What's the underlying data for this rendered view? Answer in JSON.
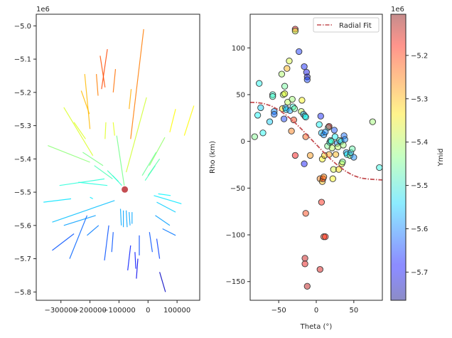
{
  "chart_data": [
    {
      "type": "line",
      "panel": "left",
      "xlim": [
        -385000,
        178000
      ],
      "ylim": [
        -5825000,
        -4965000
      ],
      "xticks": [
        -300000,
        -200000,
        -100000,
        0,
        100000
      ],
      "xtick_labels": [
        "−300000",
        "−200000",
        "−100000",
        "0",
        "100000"
      ],
      "yticks": [
        -5800000,
        -5700000,
        -5600000,
        -5500000,
        -5400000,
        -5300000,
        -5200000,
        -5100000,
        -5000000
      ],
      "ytick_labels": [
        "−5.8",
        "−5.7",
        "−5.6",
        "−5.5",
        "−5.4",
        "−5.3",
        "−5.2",
        "−5.1",
        "−5.0"
      ],
      "y_offset_text": "1e6",
      "center_point": {
        "x": -80000,
        "y": -5492000,
        "color": "#c44e52"
      },
      "segments": [
        {
          "x1": -15000,
          "y1": -5010000,
          "x2": -60000,
          "y2": -5340000
        },
        {
          "x1": -165000,
          "y1": -5090000,
          "x2": -148000,
          "y2": -5185000
        },
        {
          "x1": -140000,
          "y1": -5070000,
          "x2": -160000,
          "y2": -5190000
        },
        {
          "x1": -178000,
          "y1": -5145000,
          "x2": -172000,
          "y2": -5210000
        },
        {
          "x1": -112000,
          "y1": -5130000,
          "x2": -120000,
          "y2": -5200000
        },
        {
          "x1": -218000,
          "y1": -5145000,
          "x2": -200000,
          "y2": -5310000
        },
        {
          "x1": -230000,
          "y1": -5195000,
          "x2": -202000,
          "y2": -5265000
        },
        {
          "x1": -58000,
          "y1": -5190000,
          "x2": -65000,
          "y2": -5250000
        },
        {
          "x1": 158000,
          "y1": -5240000,
          "x2": 125000,
          "y2": -5330000
        },
        {
          "x1": 95000,
          "y1": -5250000,
          "x2": 75000,
          "y2": -5320000
        },
        {
          "x1": -5000,
          "y1": -5215000,
          "x2": -75000,
          "y2": -5440000
        },
        {
          "x1": -290000,
          "y1": -5245000,
          "x2": -190000,
          "y2": -5390000
        },
        {
          "x1": -255000,
          "y1": -5290000,
          "x2": -215000,
          "y2": -5340000
        },
        {
          "x1": -145000,
          "y1": -5290000,
          "x2": -148000,
          "y2": -5340000
        },
        {
          "x1": -120000,
          "y1": -5290000,
          "x2": -115000,
          "y2": -5330000
        },
        {
          "x1": -108000,
          "y1": -5330000,
          "x2": -82000,
          "y2": -5480000
        },
        {
          "x1": 58000,
          "y1": -5335000,
          "x2": 5000,
          "y2": -5420000
        },
        {
          "x1": 28000,
          "y1": -5380000,
          "x2": -20000,
          "y2": -5450000
        },
        {
          "x1": -225000,
          "y1": -5380000,
          "x2": -155000,
          "y2": -5420000
        },
        {
          "x1": -345000,
          "y1": -5360000,
          "x2": -200000,
          "y2": -5410000
        },
        {
          "x1": 40000,
          "y1": -5400000,
          "x2": 0,
          "y2": -5450000
        },
        {
          "x1": 25000,
          "y1": -5420000,
          "x2": -10000,
          "y2": -5465000
        },
        {
          "x1": -185000,
          "y1": -5420000,
          "x2": -122000,
          "y2": -5460000
        },
        {
          "x1": -140000,
          "y1": -5435000,
          "x2": -102000,
          "y2": -5468000
        },
        {
          "x1": -122000,
          "y1": -5450000,
          "x2": -90000,
          "y2": -5480000
        },
        {
          "x1": -240000,
          "y1": -5470000,
          "x2": -140000,
          "y2": -5480000
        },
        {
          "x1": -305000,
          "y1": -5480000,
          "x2": -150000,
          "y2": -5460000
        },
        {
          "x1": -200000,
          "y1": -5515000,
          "x2": -190000,
          "y2": -5520000
        },
        {
          "x1": -360000,
          "y1": -5530000,
          "x2": -265000,
          "y2": -5520000
        },
        {
          "x1": -330000,
          "y1": -5590000,
          "x2": -115000,
          "y2": -5525000
        },
        {
          "x1": -290000,
          "y1": -5600000,
          "x2": -180000,
          "y2": -5570000
        },
        {
          "x1": -210000,
          "y1": -5630000,
          "x2": -170000,
          "y2": -5600000
        },
        {
          "x1": 115000,
          "y1": -5535000,
          "x2": 20000,
          "y2": -5510000
        },
        {
          "x1": 78000,
          "y1": -5510000,
          "x2": 35000,
          "y2": -5505000
        },
        {
          "x1": 95000,
          "y1": -5560000,
          "x2": 30000,
          "y2": -5530000
        },
        {
          "x1": 75000,
          "y1": -5600000,
          "x2": 25000,
          "y2": -5570000
        },
        {
          "x1": 95000,
          "y1": -5630000,
          "x2": 50000,
          "y2": -5610000
        },
        {
          "x1": -95000,
          "y1": -5550000,
          "x2": -92000,
          "y2": -5600000
        },
        {
          "x1": -85000,
          "y1": -5555000,
          "x2": -85000,
          "y2": -5605000
        },
        {
          "x1": -75000,
          "y1": -5555000,
          "x2": -72000,
          "y2": -5605000
        },
        {
          "x1": -65000,
          "y1": -5560000,
          "x2": -62000,
          "y2": -5600000
        },
        {
          "x1": -55000,
          "y1": -5560000,
          "x2": -55000,
          "y2": -5595000
        },
        {
          "x1": -210000,
          "y1": -5570000,
          "x2": -270000,
          "y2": -5700000
        },
        {
          "x1": -255000,
          "y1": -5625000,
          "x2": -330000,
          "y2": -5675000
        },
        {
          "x1": -135000,
          "y1": -5600000,
          "x2": -150000,
          "y2": -5705000
        },
        {
          "x1": -120000,
          "y1": -5620000,
          "x2": -125000,
          "y2": -5680000
        },
        {
          "x1": -30000,
          "y1": -5630000,
          "x2": -30000,
          "y2": -5690000
        },
        {
          "x1": 5000,
          "y1": -5620000,
          "x2": 15000,
          "y2": -5680000
        },
        {
          "x1": 30000,
          "y1": -5640000,
          "x2": 40000,
          "y2": -5700000
        },
        {
          "x1": -60000,
          "y1": -5660000,
          "x2": -70000,
          "y2": -5735000
        },
        {
          "x1": -45000,
          "y1": -5680000,
          "x2": -42000,
          "y2": -5730000
        },
        {
          "x1": -35000,
          "y1": -5700000,
          "x2": -40000,
          "y2": -5760000
        },
        {
          "x1": 40000,
          "y1": -5740000,
          "x2": 60000,
          "y2": -5800000
        }
      ]
    },
    {
      "type": "scatter",
      "panel": "right",
      "xlabel": "Theta (°)",
      "ylabel": "Rho (km)",
      "xlim": [
        -88,
        88
      ],
      "ylim": [
        -170,
        136
      ],
      "xticks": [
        -50,
        0,
        50
      ],
      "xtick_labels": [
        "−50",
        "0",
        "50"
      ],
      "yticks": [
        -150,
        -100,
        -50,
        0,
        50,
        100
      ],
      "ytick_labels": [
        "−150",
        "−100",
        "−50",
        "0",
        "50",
        "100"
      ],
      "legend": {
        "entries": [
          "Radial Fit"
        ],
        "placement": "top-right"
      },
      "fit_line": {
        "name": "Radial Fit",
        "color": "#c44e52",
        "style": "dash-dot",
        "x": [
          -88,
          -80,
          -70,
          -60,
          -50,
          -40,
          -30,
          -20,
          -10,
          0,
          10,
          20,
          30,
          40,
          50,
          60,
          70,
          80,
          88
        ],
        "y": [
          41.7,
          41.6,
          40.5,
          37.9,
          33.7,
          28.1,
          21.2,
          13.4,
          5.1,
          -3.4,
          -11.8,
          -19.7,
          -26.7,
          -32.4,
          -36.7,
          -39.4,
          -40.4,
          -40.9,
          -41.3
        ]
      },
      "points": [
        {
          "x": -82,
          "y": 5,
          "ymid": -5.44
        },
        {
          "x": -78,
          "y": 28,
          "ymid": -5.52
        },
        {
          "x": -76,
          "y": 62,
          "ymid": -5.51
        },
        {
          "x": -74,
          "y": 36,
          "ymid": -5.55
        },
        {
          "x": -71,
          "y": 9,
          "ymid": -5.51
        },
        {
          "x": -62,
          "y": 21,
          "ymid": -5.55
        },
        {
          "x": -58,
          "y": 50,
          "ymid": -5.49
        },
        {
          "x": -58,
          "y": 48,
          "ymid": -5.48
        },
        {
          "x": -56,
          "y": 32,
          "ymid": -5.6
        },
        {
          "x": -56,
          "y": 29,
          "ymid": -5.62
        },
        {
          "x": -46,
          "y": 72,
          "ymid": -5.41
        },
        {
          "x": -45,
          "y": 35,
          "ymid": -5.33
        },
        {
          "x": -44,
          "y": 50,
          "ymid": -5.4
        },
        {
          "x": -43,
          "y": 24,
          "ymid": -5.65
        },
        {
          "x": -42,
          "y": 59,
          "ymid": -5.45
        },
        {
          "x": -42,
          "y": 51,
          "ymid": -5.37
        },
        {
          "x": -41,
          "y": 36,
          "ymid": -5.58
        },
        {
          "x": -40,
          "y": 34,
          "ymid": -5.54
        },
        {
          "x": -39,
          "y": 78,
          "ymid": -5.3
        },
        {
          "x": -38,
          "y": 42,
          "ymid": -5.4
        },
        {
          "x": -36,
          "y": 86,
          "ymid": -5.38
        },
        {
          "x": -35,
          "y": 33,
          "ymid": -5.58
        },
        {
          "x": -33,
          "y": 11,
          "ymid": -5.26
        },
        {
          "x": -32,
          "y": 45,
          "ymid": -5.42
        },
        {
          "x": -31,
          "y": 37,
          "ymid": -5.5
        },
        {
          "x": -30,
          "y": 23,
          "ymid": -5.22
        },
        {
          "x": -29,
          "y": 35,
          "ymid": -5.45
        },
        {
          "x": -28,
          "y": 120,
          "ymid": -5.18
        },
        {
          "x": -28,
          "y": 118,
          "ymid": -5.38
        },
        {
          "x": -28,
          "y": -15,
          "ymid": -5.18
        },
        {
          "x": -23,
          "y": 96,
          "ymid": -5.66
        },
        {
          "x": -20,
          "y": 32,
          "ymid": -5.4
        },
        {
          "x": -19,
          "y": 44,
          "ymid": -5.35
        },
        {
          "x": -17,
          "y": 29,
          "ymid": -5.58
        },
        {
          "x": -16,
          "y": 80,
          "ymid": -5.67
        },
        {
          "x": -15,
          "y": 27,
          "ymid": -5.49
        },
        {
          "x": -14,
          "y": 26,
          "ymid": -5.52
        },
        {
          "x": -13,
          "y": 74,
          "ymid": -5.7
        },
        {
          "x": -12,
          "y": 69,
          "ymid": -5.72
        },
        {
          "x": -12,
          "y": 66,
          "ymid": -5.65
        },
        {
          "x": -8,
          "y": -15,
          "ymid": -5.28
        },
        {
          "x": -12,
          "y": -155,
          "ymid": -5.14
        },
        {
          "x": -14,
          "y": 5,
          "ymid": -5.24
        },
        {
          "x": -16,
          "y": -24,
          "ymid": -5.68
        },
        {
          "x": -15,
          "y": -125,
          "ymid": -5.15
        },
        {
          "x": -15,
          "y": -131,
          "ymid": -5.17
        },
        {
          "x": -14,
          "y": -77,
          "ymid": -5.22
        },
        {
          "x": 4,
          "y": 18,
          "ymid": -5.52
        },
        {
          "x": 5,
          "y": -40,
          "ymid": -5.26
        },
        {
          "x": 6,
          "y": 27,
          "ymid": -5.67
        },
        {
          "x": 7,
          "y": -65,
          "ymid": -5.2
        },
        {
          "x": 7,
          "y": 9,
          "ymid": -5.56
        },
        {
          "x": 8,
          "y": -19,
          "ymid": -5.35
        },
        {
          "x": 8,
          "y": -43,
          "ymid": -5.31
        },
        {
          "x": 9,
          "y": -40,
          "ymid": -5.2
        },
        {
          "x": 10,
          "y": -102,
          "ymid": -5.22
        },
        {
          "x": 10,
          "y": -38,
          "ymid": -5.27
        },
        {
          "x": 10,
          "y": 7,
          "ymid": -5.6
        },
        {
          "x": 11,
          "y": -15,
          "ymid": -5.32
        },
        {
          "x": 12,
          "y": -102,
          "ymid": -5.2
        },
        {
          "x": 12,
          "y": 10,
          "ymid": -5.6
        },
        {
          "x": 5,
          "y": -137,
          "ymid": -5.16
        },
        {
          "x": 15,
          "y": -5,
          "ymid": -5.44
        },
        {
          "x": 16,
          "y": 15,
          "ymid": -5.5
        },
        {
          "x": 17,
          "y": 16,
          "ymid": -5.15
        },
        {
          "x": 17,
          "y": -14,
          "ymid": -5.29
        },
        {
          "x": 18,
          "y": -1,
          "ymid": -5.5
        },
        {
          "x": 19,
          "y": 1,
          "ymid": -5.52
        },
        {
          "x": 20,
          "y": 0,
          "ymid": -5.47
        },
        {
          "x": 21,
          "y": -7,
          "ymid": -5.4
        },
        {
          "x": 22,
          "y": -40,
          "ymid": -5.35
        },
        {
          "x": 23,
          "y": -30,
          "ymid": -5.38
        },
        {
          "x": 24,
          "y": 12,
          "ymid": -5.64
        },
        {
          "x": 25,
          "y": 5,
          "ymid": -5.52
        },
        {
          "x": 26,
          "y": -14,
          "ymid": -5.3
        },
        {
          "x": 28,
          "y": -2,
          "ymid": -5.6
        },
        {
          "x": 29,
          "y": -6,
          "ymid": -5.4
        },
        {
          "x": 30,
          "y": -30,
          "ymid": -5.33
        },
        {
          "x": 31,
          "y": 1,
          "ymid": -5.47
        },
        {
          "x": 33,
          "y": 0,
          "ymid": -5.55
        },
        {
          "x": 34,
          "y": -24,
          "ymid": -5.35
        },
        {
          "x": 35,
          "y": -22,
          "ymid": -5.44
        },
        {
          "x": 36,
          "y": -4,
          "ymid": -5.42
        },
        {
          "x": 37,
          "y": 6,
          "ymid": -5.62
        },
        {
          "x": 38,
          "y": 2,
          "ymid": -5.6
        },
        {
          "x": 40,
          "y": -12,
          "ymid": -5.58
        },
        {
          "x": 41,
          "y": -14,
          "ymid": -5.52
        },
        {
          "x": 45,
          "y": -15,
          "ymid": -5.44
        },
        {
          "x": 46,
          "y": -12,
          "ymid": -5.56
        },
        {
          "x": 48,
          "y": -8,
          "ymid": -5.46
        },
        {
          "x": 50,
          "y": -17,
          "ymid": -5.6
        },
        {
          "x": 75,
          "y": 21,
          "ymid": -5.42
        },
        {
          "x": 84,
          "y": -28,
          "ymid": -5.5
        }
      ]
    },
    {
      "type": "colorbar",
      "panel": "colorbar",
      "label": "Ymid",
      "range": [
        -5.765,
        -5.105
      ],
      "ticks": [
        -5.7,
        -5.6,
        -5.5,
        -5.4,
        -5.3,
        -5.2
      ],
      "tick_labels": [
        "−5.7",
        "−5.6",
        "−5.5",
        "−5.4",
        "−5.3",
        "−5.2"
      ],
      "offset_text": "1e6",
      "colormap": "jet"
    }
  ]
}
